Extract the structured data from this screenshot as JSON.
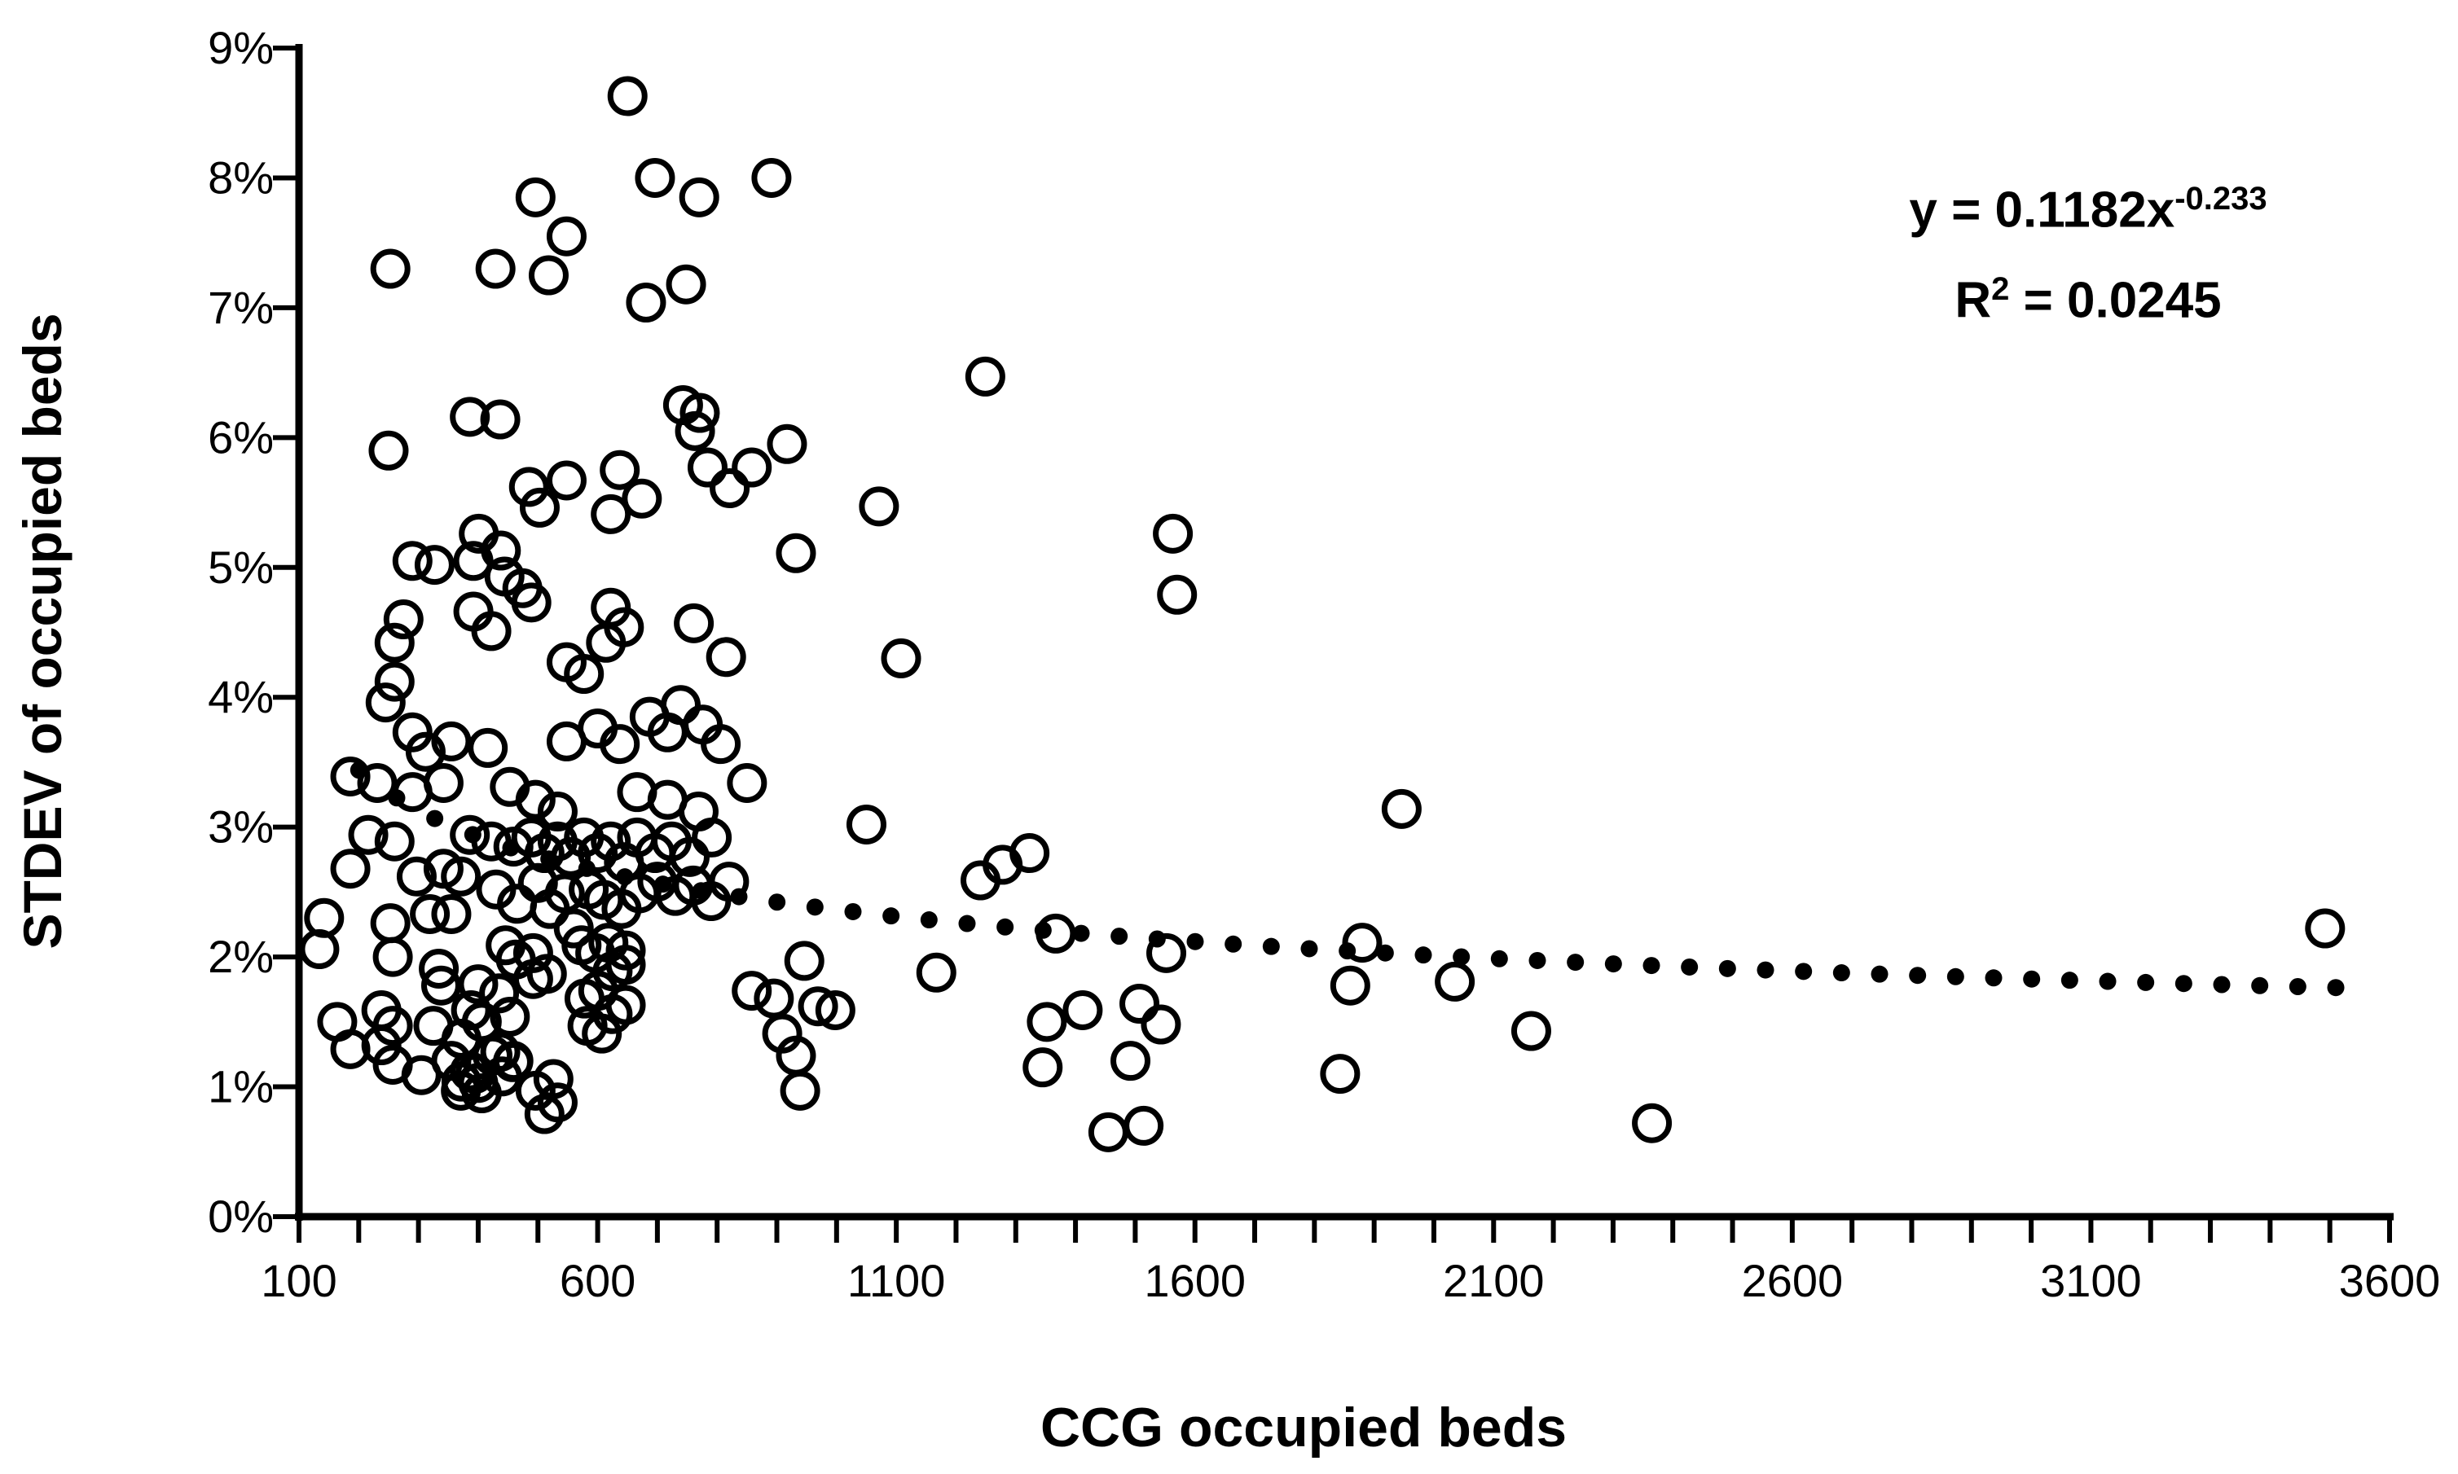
{
  "page": {
    "background": "#ffffff",
    "ink": "#000000"
  },
  "chart_data": {
    "type": "scatter",
    "title": "",
    "xlabel": "CCG occupied beds",
    "ylabel": "STDEV of occupied beds",
    "xlim": [
      100,
      3600
    ],
    "ylim": [
      0,
      9
    ],
    "y_unit": "%",
    "grid": "off",
    "legend": "none",
    "marker": {
      "shape": "open-circle",
      "color": "#000000"
    },
    "x_tick_labels": [
      "100",
      "600",
      "1100",
      "1600",
      "2100",
      "2600",
      "3100",
      "3600"
    ],
    "x_tick_values": [
      100,
      600,
      1100,
      1600,
      2100,
      2600,
      3100,
      3600
    ],
    "x_minor_tick_step": 100,
    "y_tick_labels": [
      "0%",
      "1%",
      "2%",
      "3%",
      "4%",
      "5%",
      "6%",
      "7%",
      "8%",
      "9%"
    ],
    "y_tick_values": [
      0,
      1,
      2,
      3,
      4,
      5,
      6,
      7,
      8,
      9
    ],
    "annotation": {
      "equation_prefix": "y = 0.1182x",
      "equation_exponent": "-0.233",
      "r2_base": "R",
      "r2_sup": "2",
      "r2_value": " = 0.0245"
    },
    "trendline": {
      "type": "power",
      "a": 0.1182,
      "b": -0.233,
      "x_start": 200,
      "x_end": 3510,
      "dot_count": 53,
      "style": "dotted",
      "color": "#000000"
    },
    "points": [
      [
        650,
        8.63
      ],
      [
        696,
        8.0
      ],
      [
        770,
        7.85
      ],
      [
        496,
        7.85
      ],
      [
        548,
        7.55
      ],
      [
        253,
        7.3
      ],
      [
        429,
        7.3
      ],
      [
        518,
        7.25
      ],
      [
        681,
        7.04
      ],
      [
        748,
        7.18
      ],
      [
        891,
        8.0
      ],
      [
        386,
        6.16
      ],
      [
        437,
        6.14
      ],
      [
        743,
        6.25
      ],
      [
        771,
        6.19
      ],
      [
        763,
        6.05
      ],
      [
        250,
        5.9
      ],
      [
        917,
        5.95
      ],
      [
        1249,
        6.47
      ],
      [
        485,
        5.62
      ],
      [
        548,
        5.67
      ],
      [
        503,
        5.46
      ],
      [
        637,
        5.75
      ],
      [
        674,
        5.53
      ],
      [
        784,
        5.77
      ],
      [
        821,
        5.61
      ],
      [
        622,
        5.41
      ],
      [
        858,
        5.77
      ],
      [
        1071,
        5.47
      ],
      [
        1563,
        5.26
      ],
      [
        392,
        5.05
      ],
      [
        290,
        5.05
      ],
      [
        327,
        5.02
      ],
      [
        401,
        5.26
      ],
      [
        438,
        5.13
      ],
      [
        444,
        4.93
      ],
      [
        474,
        4.84
      ],
      [
        489,
        4.73
      ],
      [
        275,
        4.6
      ],
      [
        260,
        4.42
      ],
      [
        392,
        4.66
      ],
      [
        422,
        4.51
      ],
      [
        622,
        4.69
      ],
      [
        644,
        4.54
      ],
      [
        614,
        4.42
      ],
      [
        761,
        4.57
      ],
      [
        815,
        4.31
      ],
      [
        932,
        5.11
      ],
      [
        1570,
        4.79
      ],
      [
        548,
        4.27
      ],
      [
        577,
        4.18
      ],
      [
        260,
        4.12
      ],
      [
        245,
        3.96
      ],
      [
        1108,
        4.3
      ],
      [
        355,
        3.66
      ],
      [
        312,
        3.58
      ],
      [
        290,
        3.73
      ],
      [
        416,
        3.61
      ],
      [
        548,
        3.66
      ],
      [
        600,
        3.76
      ],
      [
        637,
        3.64
      ],
      [
        687,
        3.85
      ],
      [
        717,
        3.73
      ],
      [
        739,
        3.94
      ],
      [
        776,
        3.79
      ],
      [
        806,
        3.64
      ],
      [
        186,
        3.39
      ],
      [
        231,
        3.34
      ],
      [
        290,
        3.27
      ],
      [
        342,
        3.34
      ],
      [
        453,
        3.31
      ],
      [
        496,
        3.21
      ],
      [
        533,
        3.12
      ],
      [
        666,
        3.27
      ],
      [
        717,
        3.21
      ],
      [
        769,
        3.12
      ],
      [
        850,
        3.34
      ],
      [
        1050,
        3.02
      ],
      [
        1946,
        3.14
      ],
      [
        216,
        2.94
      ],
      [
        260,
        2.89
      ],
      [
        386,
        2.94
      ],
      [
        422,
        2.89
      ],
      [
        459,
        2.85
      ],
      [
        489,
        2.92
      ],
      [
        511,
        2.8
      ],
      [
        533,
        2.89
      ],
      [
        555,
        2.77
      ],
      [
        577,
        2.92
      ],
      [
        600,
        2.8
      ],
      [
        622,
        2.89
      ],
      [
        644,
        2.73
      ],
      [
        666,
        2.92
      ],
      [
        696,
        2.8
      ],
      [
        724,
        2.89
      ],
      [
        754,
        2.77
      ],
      [
        791,
        2.92
      ],
      [
        186,
        2.68
      ],
      [
        297,
        2.62
      ],
      [
        342,
        2.68
      ],
      [
        371,
        2.62
      ],
      [
        1241,
        2.59
      ],
      [
        1278,
        2.71
      ],
      [
        1323,
        2.8
      ],
      [
        430,
        2.52
      ],
      [
        465,
        2.41
      ],
      [
        500,
        2.57
      ],
      [
        520,
        2.37
      ],
      [
        545,
        2.49
      ],
      [
        560,
        2.22
      ],
      [
        585,
        2.52
      ],
      [
        610,
        2.44
      ],
      [
        640,
        2.37
      ],
      [
        670,
        2.49
      ],
      [
        700,
        2.58
      ],
      [
        730,
        2.47
      ],
      [
        760,
        2.55
      ],
      [
        790,
        2.43
      ],
      [
        820,
        2.58
      ],
      [
        142,
        2.3
      ],
      [
        134,
        2.06
      ],
      [
        253,
        2.26
      ],
      [
        319,
        2.33
      ],
      [
        355,
        2.33
      ],
      [
        257,
        2.0
      ],
      [
        338,
        1.78
      ],
      [
        334,
        1.91
      ],
      [
        400,
        1.79
      ],
      [
        573,
        2.09
      ],
      [
        596,
        2.03
      ],
      [
        618,
        2.11
      ],
      [
        647,
        2.05
      ],
      [
        625,
        1.89
      ],
      [
        647,
        1.94
      ],
      [
        578,
        1.68
      ],
      [
        601,
        1.74
      ],
      [
        625,
        1.56
      ],
      [
        647,
        1.63
      ],
      [
        583,
        1.47
      ],
      [
        607,
        1.41
      ],
      [
        463,
        1.98
      ],
      [
        492,
        2.03
      ],
      [
        446,
        2.09
      ],
      [
        492,
        1.83
      ],
      [
        515,
        1.87
      ],
      [
        435,
        1.72
      ],
      [
        453,
        1.54
      ],
      [
        388,
        1.59
      ],
      [
        406,
        1.5
      ],
      [
        946,
        1.97
      ],
      [
        1167,
        1.88
      ],
      [
        1367,
        2.18
      ],
      [
        1552,
        2.03
      ],
      [
        1880,
        2.11
      ],
      [
        1860,
        1.78
      ],
      [
        2035,
        1.81
      ],
      [
        3492,
        2.22
      ],
      [
        858,
        1.74
      ],
      [
        895,
        1.68
      ],
      [
        969,
        1.62
      ],
      [
        998,
        1.59
      ],
      [
        909,
        1.41
      ],
      [
        932,
        1.24
      ],
      [
        939,
        0.97
      ],
      [
        1352,
        1.5
      ],
      [
        1412,
        1.59
      ],
      [
        1507,
        1.64
      ],
      [
        1543,
        1.48
      ],
      [
        1345,
        1.15
      ],
      [
        1492,
        1.2
      ],
      [
        2163,
        1.43
      ],
      [
        1843,
        1.1
      ],
      [
        257,
        1.47
      ],
      [
        257,
        1.17
      ],
      [
        325,
        1.47
      ],
      [
        372,
        1.37
      ],
      [
        372,
        1.04
      ],
      [
        395,
        1.1
      ],
      [
        406,
        0.95
      ],
      [
        424,
        1.24
      ],
      [
        458,
        1.19
      ],
      [
        440,
        1.08
      ],
      [
        164,
        1.5
      ],
      [
        186,
        1.29
      ],
      [
        238,
        1.59
      ],
      [
        238,
        1.32
      ],
      [
        305,
        1.09
      ],
      [
        355,
        1.2
      ],
      [
        386,
        1.12
      ],
      [
        371,
        0.97
      ],
      [
        400,
        1.03
      ],
      [
        437,
        1.27
      ],
      [
        459,
        1.2
      ],
      [
        526,
        1.06
      ],
      [
        496,
        0.97
      ],
      [
        533,
        0.88
      ],
      [
        511,
        0.79
      ],
      [
        1455,
        0.65
      ],
      [
        1514,
        0.7
      ],
      [
        2365,
        0.72
      ]
    ]
  }
}
